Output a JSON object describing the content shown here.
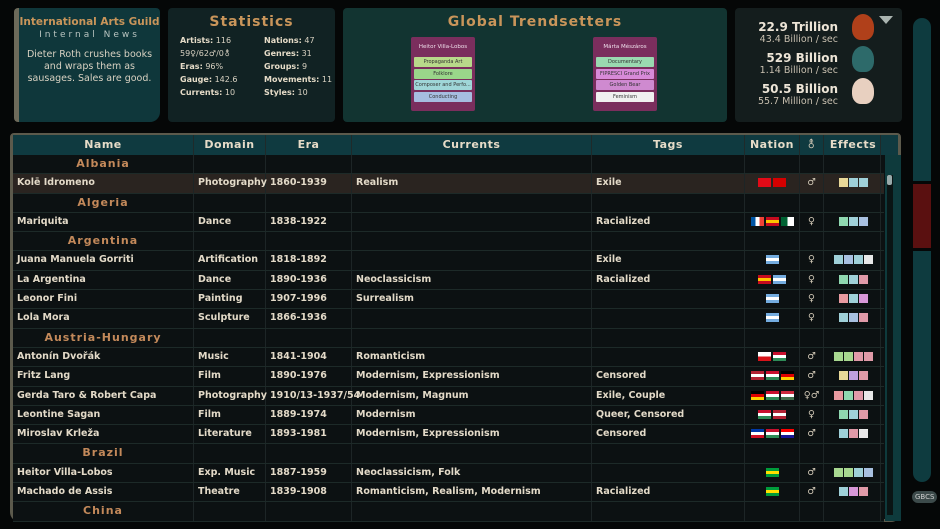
{
  "news": {
    "title": "International Arts Guild",
    "subtitle": "Internal News",
    "body": "Dieter Roth crushes books and wraps them as sausages. Sales are good."
  },
  "stats": {
    "title": "Statistics",
    "items": [
      {
        "label": "Artists:",
        "value": "116"
      },
      {
        "label": "Nations:",
        "value": "47"
      },
      {
        "label": "",
        "value": "59♀/62♂/0⚨"
      },
      {
        "label": "Genres:",
        "value": "31"
      },
      {
        "label": "Eras:",
        "value": "96%"
      },
      {
        "label": "Groups:",
        "value": "9"
      },
      {
        "label": "Gauge:",
        "value": "142.6"
      },
      {
        "label": "Movements:",
        "value": "11"
      },
      {
        "label": "Currents:",
        "value": "10"
      },
      {
        "label": "Styles:",
        "value": "10"
      }
    ]
  },
  "trendsetters": {
    "title": "Global Trendsetters",
    "cards": [
      {
        "name": "Heitor Villa-Lobos",
        "tags": [
          {
            "t": "Propaganda Art",
            "c": "#b8d98a"
          },
          {
            "t": "Folklore",
            "c": "#9ad68a"
          },
          {
            "t": "Composer and Perfo...",
            "c": "#9fd6d8"
          },
          {
            "t": "Conducting",
            "c": "#a6bde0"
          }
        ]
      },
      {
        "name": "Márta Mészáros",
        "tags": [
          {
            "t": "Documentary",
            "c": "#9ad9b0"
          },
          {
            "t": "FIPRESCI Grand Prix",
            "c": "#d88ad8"
          },
          {
            "t": "Golden Bear",
            "c": "#cf8ad0"
          },
          {
            "t": "Feminism",
            "c": "#f0f0f0"
          }
        ]
      }
    ]
  },
  "resources": [
    {
      "total": "22.9 Trillion",
      "rate": "43.4 Billion / sec",
      "icon": "venus-figurine-icon",
      "color": "#b0401a"
    },
    {
      "total": "529 Billion",
      "rate": "1.14 Billion / sec",
      "icon": "nefertiti-bust-icon",
      "color": "#2d6a6a"
    },
    {
      "total": "50.5 Billion",
      "rate": "55.7 Million / sec",
      "icon": "fountain-urinal-icon",
      "color": "#e8d0c0"
    }
  ],
  "table": {
    "columns": [
      "Name",
      "Domain",
      "Era",
      "Currents",
      "Tags",
      "Nation",
      "⚨",
      "Effects"
    ],
    "rows": [
      {
        "group": "Albania"
      },
      {
        "name": "Kolē Idromeno",
        "domain": "Photography",
        "era": "1860-1939",
        "currents": "Realism",
        "tags": "Exile",
        "nations": [
          "turkey",
          "albania"
        ],
        "gender": "♂",
        "effects": [
          "#e8d898",
          "#9fd0d8",
          "#9fd0d8"
        ],
        "selected": true
      },
      {
        "group": "Algeria"
      },
      {
        "name": "Mariquita",
        "domain": "Dance",
        "era": "1838-1922",
        "currents": "",
        "tags": "Racialized",
        "nations": [
          "france",
          "spain",
          "algeria"
        ],
        "gender": "♀",
        "effects": [
          "#8fd8b0",
          "#9fd0d8",
          "#a8c0e0"
        ]
      },
      {
        "group": "Argentina"
      },
      {
        "name": "Juana Manuela Gorriti",
        "domain": "Artification",
        "era": "1818-1892",
        "currents": "",
        "tags": "Exile",
        "nations": [
          "argentina"
        ],
        "gender": "♀",
        "effects": [
          "#9fd0d8",
          "#a8c0e0",
          "#9fd0d8",
          "#e8e8e8"
        ]
      },
      {
        "name": "La Argentina",
        "domain": "Dance",
        "era": "1890-1936",
        "currents": "Neoclassicism",
        "tags": "Racialized",
        "nations": [
          "spain",
          "argentina"
        ],
        "gender": "♀",
        "effects": [
          "#8fd8b0",
          "#9fd0d8",
          "#e09aa8"
        ]
      },
      {
        "name": "Leonor Fini",
        "domain": "Painting",
        "era": "1907-1996",
        "currents": "Surrealism",
        "tags": "",
        "nations": [
          "argentina"
        ],
        "gender": "♀",
        "effects": [
          "#e89aa0",
          "#9fd0d8",
          "#d898d8"
        ]
      },
      {
        "name": "Lola Mora",
        "domain": "Sculpture",
        "era": "1866-1936",
        "currents": "",
        "tags": "",
        "nations": [
          "argentina"
        ],
        "gender": "♀",
        "effects": [
          "#9fd0d8",
          "#a8c0e0",
          "#e09aa8"
        ]
      },
      {
        "group": "Austria-Hungary"
      },
      {
        "name": "Antonín Dvořák",
        "domain": "Music",
        "era": "1841-1904",
        "currents": "Romanticism",
        "tags": "",
        "nations": [
          "czech",
          "austria-hungary"
        ],
        "gender": "♂",
        "effects": [
          "#a8d890",
          "#a8d890",
          "#e09aa8",
          "#e09aa8"
        ]
      },
      {
        "name": "Fritz Lang",
        "domain": "Film",
        "era": "1890-1976",
        "currents": "Modernism, Expressionism",
        "tags": "Censored",
        "nations": [
          "usa",
          "austria-hungary",
          "germany"
        ],
        "gender": "♂",
        "effects": [
          "#e8d898",
          "#c0a0e0",
          "#e09aa8"
        ]
      },
      {
        "name": "Gerda Taro & Robert Capa",
        "domain": "Photography",
        "era": "1910/13-1937/54",
        "currents": "Modernism, Magnum",
        "tags": "Exile, Couple",
        "nations": [
          "germany",
          "austria-hungary",
          "hungary"
        ],
        "gender": "♀♂",
        "effects": [
          "#e89aa0",
          "#8fd8b0",
          "#e09aa8",
          "#e8e8e8"
        ]
      },
      {
        "name": "Leontine Sagan",
        "domain": "Film",
        "era": "1889-1974",
        "currents": "Modernism",
        "tags": "Queer, Censored",
        "nations": [
          "austria-hungary",
          "usa"
        ],
        "gender": "♀",
        "effects": [
          "#8fd8b0",
          "#9fd0d8",
          "#e09aa8"
        ]
      },
      {
        "name": "Miroslav Krleža",
        "domain": "Literature",
        "era": "1893-1981",
        "currents": "Modernism, Expressionism",
        "tags": "Censored",
        "nations": [
          "yugoslavia",
          "austria-hungary",
          "croatia"
        ],
        "gender": "♂",
        "effects": [
          "#9fd0d8",
          "#e09aa8",
          "#e8e8e8"
        ]
      },
      {
        "group": "Brazil"
      },
      {
        "name": "Heitor Villa-Lobos",
        "domain": "Exp. Music",
        "era": "1887-1959",
        "currents": "Neoclassicism, Folk",
        "tags": "",
        "nations": [
          "brazil"
        ],
        "gender": "♂",
        "effects": [
          "#a8d890",
          "#a8d890",
          "#9fd0d8",
          "#a8c0e0"
        ]
      },
      {
        "name": "Machado de Assis",
        "domain": "Theatre",
        "era": "1839-1908",
        "currents": "Romanticism, Realism, Modernism",
        "tags": "Racialized",
        "nations": [
          "brazil"
        ],
        "gender": "♂",
        "effects": [
          "#9fd0d8",
          "#d898d8",
          "#e09aa8"
        ]
      },
      {
        "group": "China"
      }
    ]
  },
  "sidebar": {
    "logo": "GBCS"
  }
}
